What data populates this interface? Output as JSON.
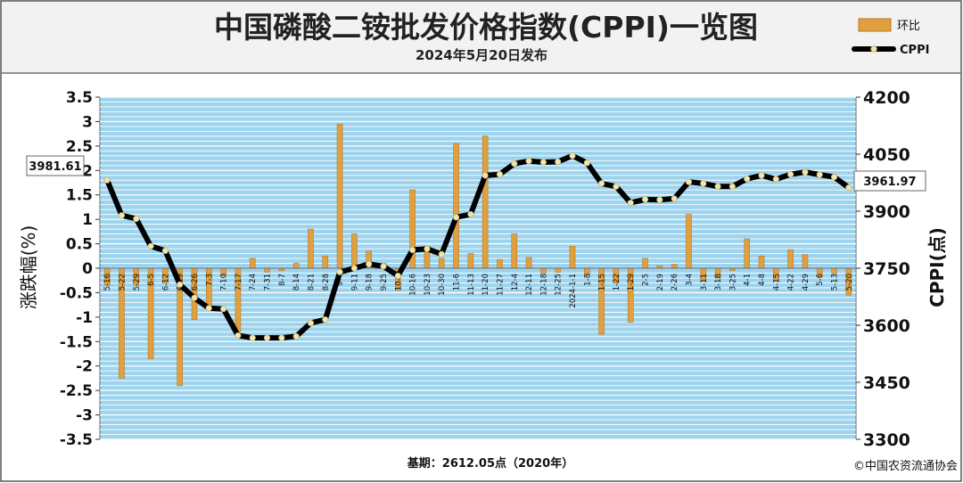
{
  "header": {
    "title": "中国磷酸二铵批发价格指数(CPPI)一览图",
    "subtitle": "2024年5月20日发布"
  },
  "footer": {
    "base": "基期：2612.05点（2020年）",
    "copyright": "©中国农资流通协会"
  },
  "colors": {
    "bar": "#e0a040",
    "bar_edge": "#b87820",
    "line": "#000000",
    "marker": "#f2e6b0",
    "plot_bg": "#9ed4ee",
    "grid": "#ffffff"
  },
  "chart_data": {
    "type": "bar",
    "legend_position": "top-right",
    "legend": [
      {
        "label": "环比",
        "kind": "bar"
      },
      {
        "label": "CPPI",
        "kind": "line"
      }
    ],
    "ylabel_left": "涨跌幅(%)",
    "ylabel_right": "CPPI(点)",
    "ylim_left": [
      -3.5,
      3.5
    ],
    "ylim_right": [
      3300,
      4200
    ],
    "yticks_left": [
      "3.5",
      "3",
      "2.5",
      "2",
      "1.5",
      "1",
      "0.5",
      "0",
      "-0.5",
      "-1",
      "-1.5",
      "-2",
      "-2.5",
      "-3",
      "-3.5"
    ],
    "yticks_right": [
      "4200",
      "4050",
      "3900",
      "3750",
      "3600",
      "3450",
      "3300"
    ],
    "grid": true,
    "categories": [
      "5-16",
      "5-22",
      "5-29",
      "6-5",
      "6-12",
      "6-19",
      "6-26",
      "7-3",
      "7-10",
      "7-17",
      "7-24",
      "7-31",
      "8-7",
      "8-14",
      "8-21",
      "8-28",
      "9-4",
      "9-11",
      "9-18",
      "9-25",
      "10-9",
      "10-16",
      "10-23",
      "10-30",
      "11-6",
      "11-13",
      "11-20",
      "11-27",
      "12-4",
      "12-11",
      "12-18",
      "12-25",
      "2024-1-1",
      "1-8",
      "1-15",
      "1-22",
      "1-29",
      "2-5",
      "2-19",
      "2-26",
      "3-4",
      "3-11",
      "3-18",
      "3-25",
      "4-1",
      "4-8",
      "4-15",
      "4-22",
      "4-29",
      "5-6",
      "5-13",
      "5-20"
    ],
    "series": [
      {
        "name": "环比",
        "type": "bar",
        "axis": "left",
        "values": [
          -0.35,
          -2.25,
          -0.35,
          -1.85,
          -0.3,
          -2.4,
          -1.05,
          -0.8,
          -0.15,
          -1.3,
          0.2,
          -0.08,
          -0.05,
          0.1,
          0.8,
          0.25,
          2.95,
          0.7,
          0.35,
          0.1,
          -0.45,
          1.6,
          0.45,
          0.2,
          2.55,
          0.3,
          2.7,
          0.18,
          0.7,
          0.22,
          -0.1,
          -0.08,
          0.45,
          -0.12,
          -1.35,
          -0.3,
          -1.1,
          0.2,
          0.05,
          0.08,
          1.1,
          -0.25,
          -0.2,
          -0.05,
          0.6,
          0.25,
          -0.25,
          0.38,
          0.28,
          -0.18,
          -0.1,
          -0.55
        ]
      },
      {
        "name": "CPPI",
        "type": "line",
        "axis": "right",
        "values": [
          3981.61,
          3889,
          3880,
          3808,
          3796,
          3707,
          3672,
          3645,
          3643,
          3573,
          3567,
          3567,
          3567,
          3571,
          3606,
          3615,
          3740,
          3750,
          3761,
          3755,
          3730,
          3798,
          3801,
          3787,
          3884,
          3892,
          3994,
          3997,
          4025,
          4032,
          4029,
          4030,
          4046,
          4027,
          3973,
          3965,
          3922,
          3931,
          3930,
          3933,
          3977,
          3973,
          3965,
          3965,
          3985,
          3994,
          3984,
          3997,
          4003,
          3996,
          3990,
          3961.97
        ]
      }
    ],
    "annotations": {
      "first": "3981.61",
      "last": "3961.97"
    }
  }
}
